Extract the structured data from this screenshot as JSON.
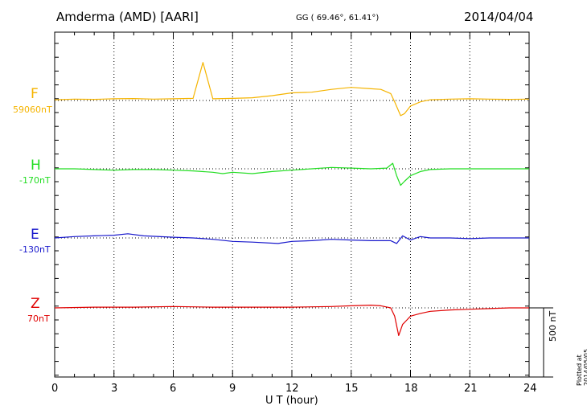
{
  "header": {
    "station": "Amderma (AMD)  [AARI]",
    "coords": "GG ( 69.46°,  61.41°)",
    "date": "2014/04/04"
  },
  "plotted_note": "Plotted at 2014/05/05 02:22 UT",
  "scale_bar_label": "500 nT",
  "chart_data": {
    "type": "line",
    "title": "Amderma (AMD)  [AARI]",
    "xlabel": "U T (hour)",
    "xlim": [
      0,
      24
    ],
    "xticks": [
      "0",
      "3",
      "6",
      "9",
      "12",
      "15",
      "18",
      "21",
      "24"
    ],
    "grid": "dotted vertical every 3 hours; dotted baseline per channel",
    "scale_bar_nT": 500,
    "series": [
      {
        "name": "F",
        "baseline_label": "59060nT",
        "color": "#f5b400",
        "x": [
          0,
          1,
          2,
          3,
          4,
          5,
          6,
          7,
          7.5,
          8,
          9,
          10,
          11,
          12,
          13,
          14,
          15,
          16,
          16.5,
          17,
          17.2,
          17.5,
          17.7,
          18,
          18.5,
          19,
          20,
          21,
          22,
          23,
          24
        ],
        "y": [
          5,
          10,
          8,
          12,
          14,
          10,
          12,
          15,
          275,
          12,
          15,
          20,
          35,
          55,
          60,
          80,
          95,
          85,
          80,
          50,
          -10,
          -110,
          -95,
          -40,
          -10,
          5,
          10,
          12,
          10,
          8,
          10
        ]
      },
      {
        "name": "H",
        "baseline_label": "-170nT",
        "color": "#22dd22",
        "x": [
          0,
          1,
          2,
          3,
          4,
          5,
          6,
          7,
          8,
          8.5,
          9,
          10,
          11,
          12,
          13,
          14,
          15,
          16,
          16.8,
          17.1,
          17.3,
          17.5,
          17.7,
          18,
          18.5,
          19,
          20,
          21,
          22,
          23,
          24
        ],
        "y": [
          0,
          0,
          -5,
          -10,
          -5,
          -5,
          -10,
          -15,
          -25,
          -35,
          -25,
          -35,
          -20,
          -10,
          0,
          10,
          5,
          0,
          5,
          40,
          -50,
          -120,
          -90,
          -50,
          -20,
          -5,
          0,
          0,
          0,
          0,
          0
        ]
      },
      {
        "name": "E",
        "baseline_label": "-130nT",
        "color": "#1818cc",
        "x": [
          0,
          1,
          2,
          3,
          3.7,
          4.5,
          6,
          7,
          8,
          9,
          10,
          11.3,
          12,
          13,
          14,
          15,
          16,
          17,
          17.3,
          17.6,
          18,
          18.5,
          19,
          20,
          21,
          22,
          23,
          24
        ],
        "y": [
          0,
          10,
          15,
          20,
          30,
          15,
          5,
          0,
          -10,
          -25,
          -30,
          -40,
          -25,
          -20,
          -10,
          -15,
          -20,
          -20,
          -40,
          15,
          -15,
          10,
          0,
          0,
          -5,
          0,
          0,
          0
        ]
      },
      {
        "name": "Z",
        "baseline_label": "70nT",
        "color": "#e00000",
        "x": [
          0,
          2,
          4,
          6,
          8,
          10,
          12,
          14,
          15,
          16,
          16.5,
          17,
          17.2,
          17.4,
          17.6,
          17.8,
          18,
          18.5,
          19,
          20,
          21,
          22,
          23,
          24
        ],
        "y": [
          0,
          5,
          5,
          10,
          5,
          5,
          5,
          10,
          15,
          20,
          15,
          0,
          -60,
          -200,
          -120,
          -90,
          -60,
          -40,
          -25,
          -15,
          -10,
          -5,
          0,
          0
        ]
      }
    ]
  }
}
